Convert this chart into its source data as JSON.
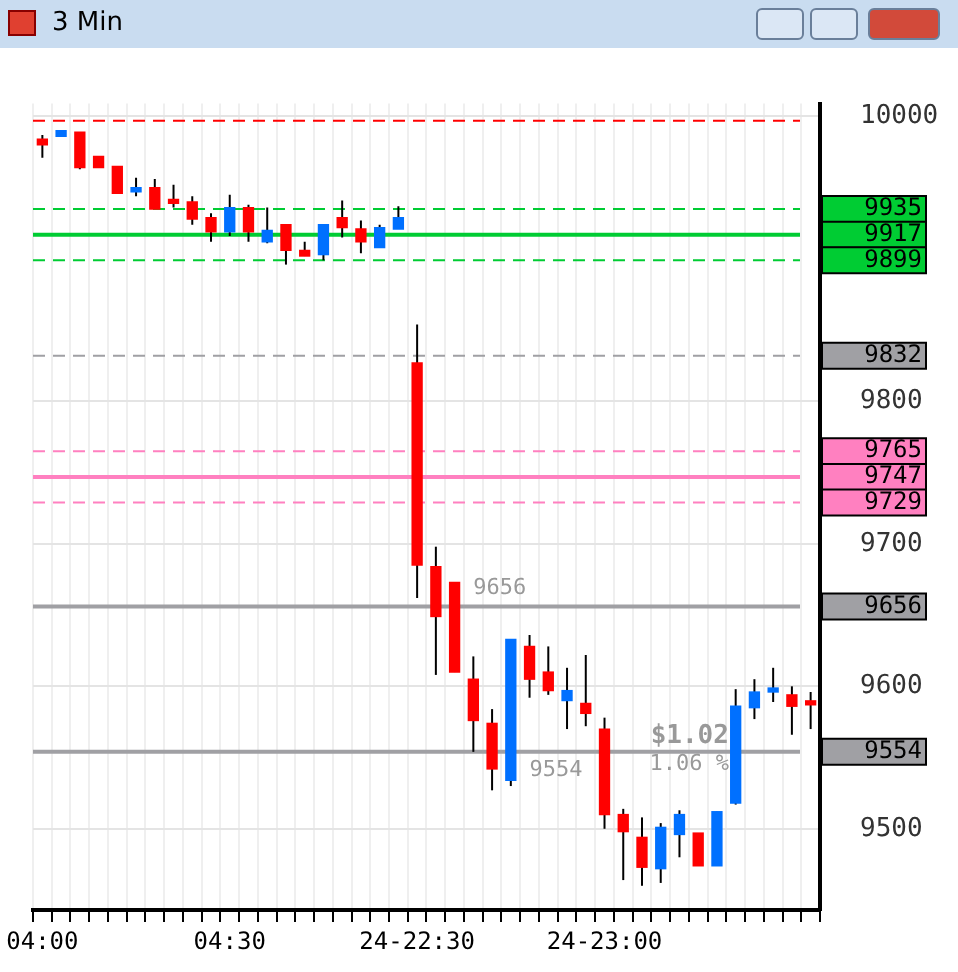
{
  "chart_data": {
    "type": "candlestick",
    "title": "3 Min",
    "categories": [
      "04:00",
      null,
      null,
      null,
      null,
      null,
      null,
      null,
      null,
      null,
      "04:30",
      null,
      null,
      null,
      null,
      null,
      null,
      null,
      null,
      null,
      "24-22:30",
      null,
      null,
      null,
      null,
      null,
      null,
      null,
      null,
      null,
      "24-23:00",
      null,
      null,
      null,
      null,
      null,
      null,
      null,
      null,
      null,
      null,
      null
    ],
    "ohlc": [
      [
        9984,
        9987,
        9971,
        9980
      ],
      [
        9986,
        9990,
        9986,
        9990
      ],
      [
        9989,
        9989,
        9963,
        9964
      ],
      [
        9972,
        9972,
        9964,
        9964
      ],
      [
        9965,
        9965,
        9946,
        9946
      ],
      [
        9947,
        9957,
        9944,
        9950
      ],
      [
        9950,
        9956,
        9935,
        9935
      ],
      [
        9941,
        9952,
        9936,
        9939
      ],
      [
        9940,
        9944,
        9924,
        9928
      ],
      [
        9929,
        9932,
        9912,
        9919
      ],
      [
        9919,
        9945,
        9916,
        9936
      ],
      [
        9936,
        9938,
        9912,
        9919
      ],
      [
        9912,
        9936,
        9911,
        9920
      ],
      [
        9924,
        9924,
        9896,
        9906
      ],
      [
        9906,
        9912,
        9902,
        9902
      ],
      [
        9903,
        9924,
        9899,
        9924
      ],
      [
        9929,
        9941,
        9915,
        9922
      ],
      [
        9921,
        9927,
        9904,
        9912
      ],
      [
        9908,
        9924,
        9908,
        9922
      ],
      [
        9921,
        9937,
        9921,
        9929
      ],
      [
        9827,
        9854,
        9662,
        9685
      ],
      [
        9684,
        9698,
        9608,
        9649
      ],
      [
        9673,
        9673,
        9610,
        9610
      ],
      [
        9605,
        9621,
        9554,
        9576
      ],
      [
        9574,
        9584,
        9527,
        9542
      ],
      [
        9534,
        9633,
        9530,
        9633
      ],
      [
        9628,
        9636,
        9592,
        9605
      ],
      [
        9610,
        9628,
        9594,
        9597
      ],
      [
        9590,
        9613,
        9570,
        9597
      ],
      [
        9588,
        9622,
        9572,
        9581
      ],
      [
        9570,
        9578,
        9500,
        9510
      ],
      [
        9510,
        9514,
        9464,
        9498
      ],
      [
        9494,
        9508,
        9460,
        9473
      ],
      [
        9472,
        9504,
        9462,
        9501
      ],
      [
        9496,
        9513,
        9480,
        9510
      ],
      [
        9497,
        9497,
        9474,
        9474
      ],
      [
        9474,
        9512,
        9474,
        9512
      ],
      [
        9518,
        9598,
        9517,
        9586
      ],
      [
        9585,
        9605,
        9577,
        9596
      ],
      [
        9596,
        9613,
        9589,
        9597
      ],
      [
        9594,
        9600,
        9566,
        9586
      ],
      [
        9588,
        9596,
        9570,
        9587
      ]
    ],
    "colors": [
      "#ff0000",
      "#0070ff",
      "#ff0000",
      "#ff0000",
      "#ff0000",
      "#0070ff",
      "#ff0000",
      "#ff0000",
      "#ff0000",
      "#ff0000",
      "#0070ff",
      "#ff0000",
      "#0070ff",
      "#ff0000",
      "#ff0000",
      "#0070ff",
      "#ff0000",
      "#ff0000",
      "#0070ff",
      "#0070ff",
      "#ff0000",
      "#ff0000",
      "#ff0000",
      "#ff0000",
      "#ff0000",
      "#0070ff",
      "#ff0000",
      "#ff0000",
      "#0070ff",
      "#ff0000",
      "#ff0000",
      "#ff0000",
      "#ff0000",
      "#0070ff",
      "#0070ff",
      "#ff0000",
      "#0070ff",
      "#0070ff",
      "#0070ff",
      "#0070ff",
      "#ff0000",
      "#ff0000"
    ],
    "ylim": [
      9443,
      10009
    ],
    "yticks": [
      9500,
      9600,
      9700,
      9800,
      10000
    ],
    "grid": true,
    "legend": false,
    "ref_lines": [
      {
        "axis": "y",
        "value": 9997,
        "label": null,
        "color": "#ff0000",
        "line_style": "dashed"
      },
      {
        "axis": "y",
        "value": 9935,
        "label": "9935",
        "color": "#00cc33",
        "line_style": "dashed"
      },
      {
        "axis": "y",
        "value": 9917,
        "label": "9917",
        "color": "#00cc33",
        "line_style": "solid"
      },
      {
        "axis": "y",
        "value": 9899,
        "label": "9899",
        "color": "#00cc33",
        "line_style": "dashed"
      },
      {
        "axis": "y",
        "value": 9832,
        "label": "9832",
        "color": "#a0a0a4",
        "line_style": "dashed"
      },
      {
        "axis": "y",
        "value": 9765,
        "label": "9765",
        "color": "#ff80c0",
        "line_style": "dashed"
      },
      {
        "axis": "y",
        "value": 9747,
        "label": "9747",
        "color": "#ff80c0",
        "line_style": "solid"
      },
      {
        "axis": "y",
        "value": 9729,
        "label": "9729",
        "color": "#ff80c0",
        "line_style": "dashed"
      },
      {
        "axis": "y",
        "value": 9656,
        "label": "9656",
        "color": "#a0a0a4",
        "line_style": "solid"
      },
      {
        "axis": "y",
        "value": 9554,
        "label": "9554",
        "color": "#a0a0a4",
        "line_style": "solid"
      }
    ],
    "annotations": [
      {
        "text": "9656",
        "y": 9656
      },
      {
        "text": "9554",
        "y": 9554
      },
      "$1.02",
      "1.06 %"
    ]
  }
}
